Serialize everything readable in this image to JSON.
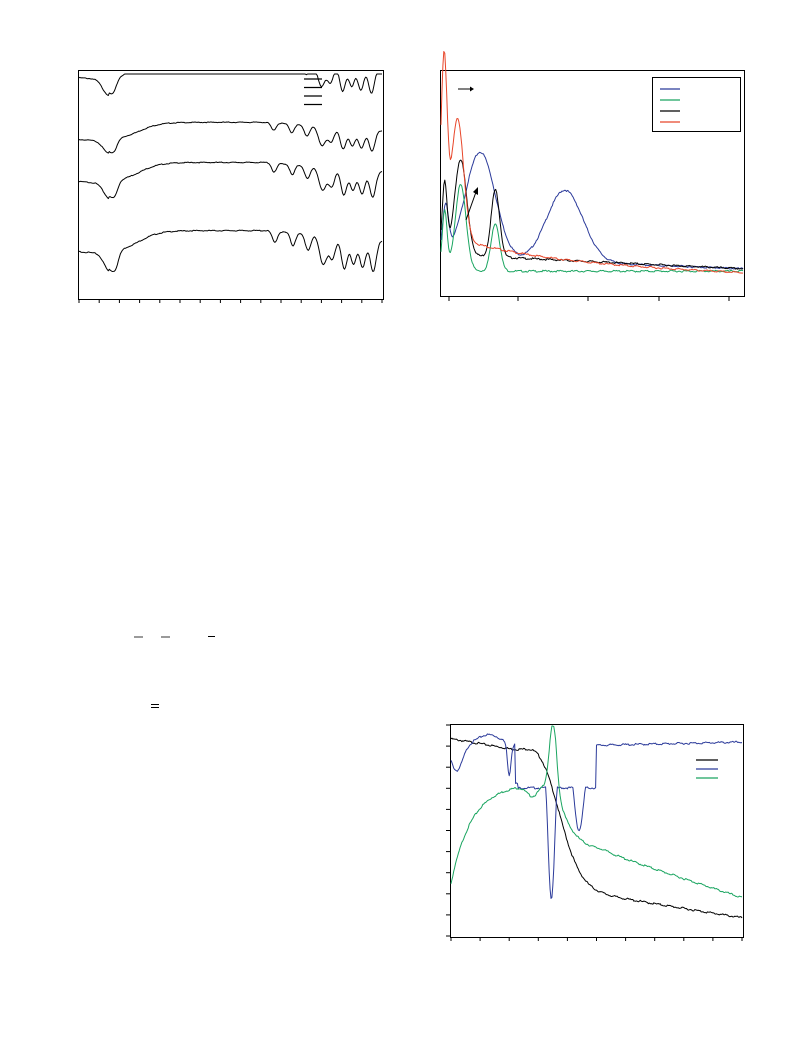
{
  "figures": [
    {
      "id": "ftir",
      "legend_swatch_colors": [
        "#000000",
        "#000000",
        "#000000",
        "#000000"
      ],
      "x_tick_count": 16,
      "traces": [
        {
          "color": "#000000",
          "offset": 0.8,
          "shape": "flat-then-bands",
          "scale": 1.0
        },
        {
          "color": "#000000",
          "offset": 0.6,
          "shape": "flat-then-bands",
          "scale": 0.9
        },
        {
          "color": "#000000",
          "offset": 0.46,
          "shape": "flat-then-bands",
          "scale": 1.0
        },
        {
          "color": "#000000",
          "offset": 0.25,
          "shape": "flat-then-bands",
          "scale": 1.1
        }
      ]
    },
    {
      "id": "uvvis",
      "legend_swatch_colors": [
        "#2b3a9a",
        "#1aa560",
        "#000000",
        "#e8462a"
      ],
      "x_tick_count": 5,
      "traces": [
        {
          "color": "#2b3a9a",
          "shape": "two-broad-bands"
        },
        {
          "color": "#1aa560",
          "shape": "sharp-peaks-low"
        },
        {
          "color": "#000000",
          "shape": "sharp-peaks-mid"
        },
        {
          "color": "#e8462a",
          "shape": "spike-then-decay"
        }
      ]
    },
    {
      "id": "third",
      "legend_swatch_colors": [
        "#000000",
        "#2b3a9a",
        "#1aa560"
      ],
      "x_tick_count": 11,
      "y_tick_count": 11,
      "traces": [
        {
          "color": "#000000",
          "shape": "sigmoid-drop"
        },
        {
          "color": "#2b3a9a",
          "shape": "dips-then-plateau"
        },
        {
          "color": "#1aa560",
          "shape": "rise-peak-decay"
        }
      ]
    }
  ],
  "chart_data": [
    {
      "type": "line",
      "series": [
        {
          "values": []
        },
        {
          "values": []
        },
        {
          "values": []
        },
        {
          "values": []
        }
      ]
    },
    {
      "type": "line",
      "series": [
        {
          "values": []
        },
        {
          "values": []
        },
        {
          "values": []
        },
        {
          "values": []
        }
      ]
    },
    {
      "type": "line",
      "series": [
        {
          "values": []
        },
        {
          "values": []
        },
        {
          "values": []
        }
      ]
    }
  ]
}
